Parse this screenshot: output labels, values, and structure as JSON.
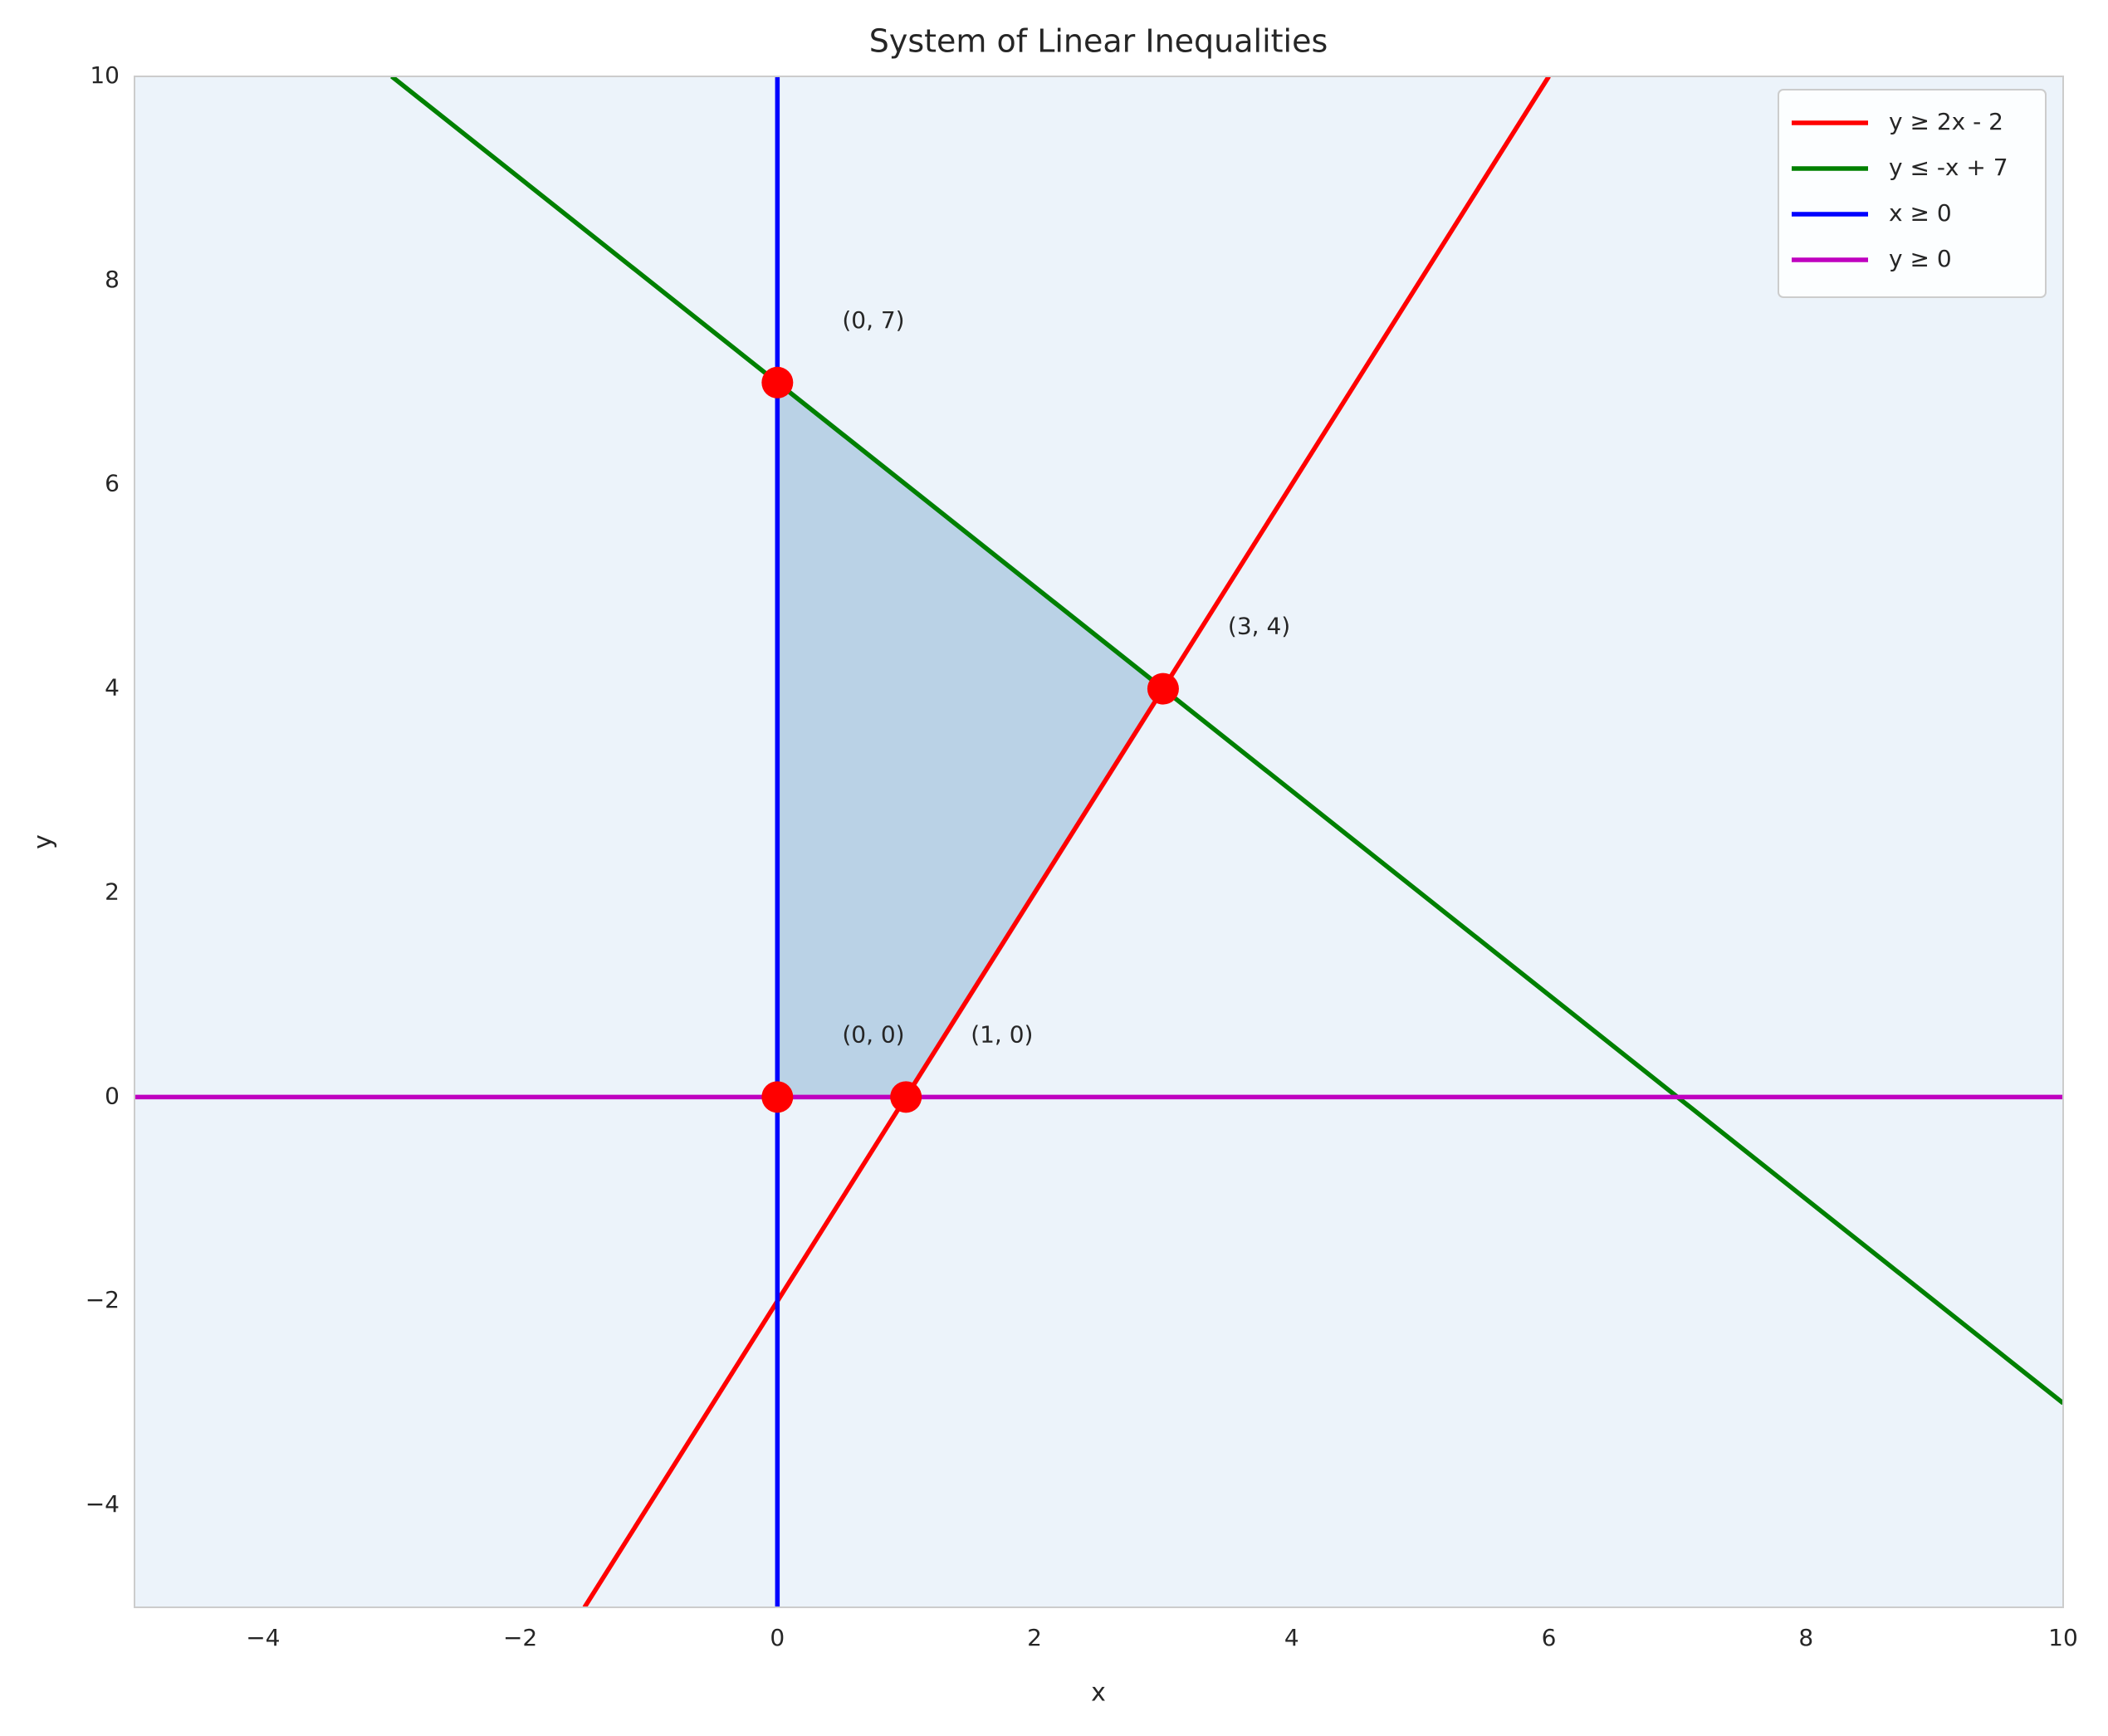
{
  "chart_data": {
    "type": "line",
    "title": "System of Linear Inequalities",
    "xlabel": "x",
    "ylabel": "y",
    "xlim": [
      -5,
      10
    ],
    "ylim": [
      -5,
      10
    ],
    "xticks": [
      {
        "value": -4,
        "label": "−4"
      },
      {
        "value": -2,
        "label": "−2"
      },
      0,
      2,
      4,
      6,
      8,
      10
    ],
    "yticks": [
      {
        "value": -4,
        "label": "−4"
      },
      {
        "value": -2,
        "label": "−2"
      },
      0,
      2,
      4,
      6,
      8,
      10
    ],
    "grid": false,
    "legend": "upper right",
    "series": [
      {
        "name": "y ≥ 2x - 2",
        "color": "#ff0000",
        "x": [
          -1.5,
          6
        ],
        "values": [
          -5,
          10
        ]
      },
      {
        "name": "y ≤ -x + 7",
        "color": "#008000",
        "x": [
          -3,
          10
        ],
        "values": [
          10,
          -3
        ]
      },
      {
        "name": "x ≥ 0",
        "color": "#0000ff",
        "x": [
          0,
          0
        ],
        "values": [
          -5,
          10
        ]
      },
      {
        "name": "y ≥ 0",
        "color": "#bf00bf",
        "x": [
          -5,
          10
        ],
        "values": [
          0,
          0
        ]
      }
    ],
    "points": {
      "color": "#ff0000",
      "fill_color": "#bad2e6",
      "x": [
        0,
        1,
        3,
        0
      ],
      "values": [
        0,
        0,
        4,
        7
      ],
      "labels": [
        "(0, 0)",
        "(1, 0)",
        "(3, 4)",
        "(0, 7)"
      ]
    }
  }
}
